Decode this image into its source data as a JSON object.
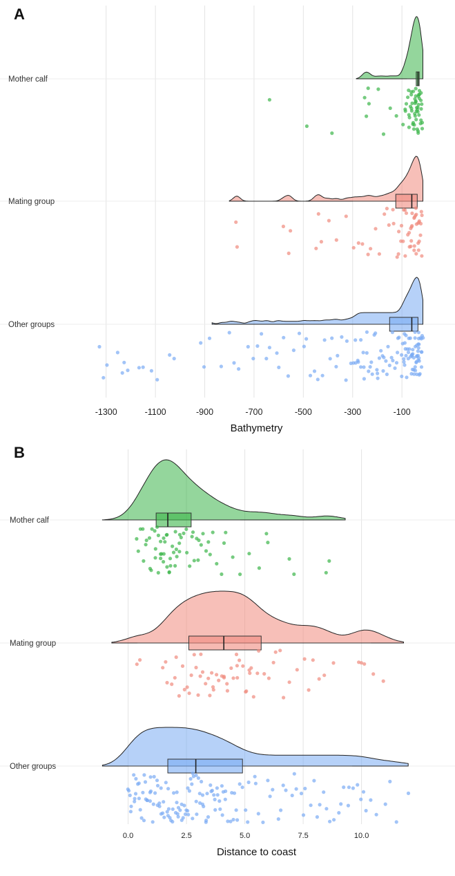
{
  "chart_data": [
    {
      "panel": "A",
      "type": "raincloud",
      "xlabel": "Bathymetry",
      "xlim": [
        -1400,
        20
      ],
      "xticks": [
        -1300,
        -1100,
        -900,
        -700,
        -500,
        -300,
        -100
      ],
      "xticklabels": [
        "-1300",
        "-1100",
        "-900",
        "-700",
        "-500",
        "-300",
        "-100"
      ],
      "grid": true,
      "groups": [
        {
          "label": "Mother calf",
          "color": "#3cb54a",
          "boxplot": {
            "q1": -42,
            "median": -35,
            "q3": -30,
            "whisker_low": -80,
            "whisker_high": -15
          },
          "density_range": [
            -285,
            -15
          ],
          "points": [
            -255,
            -248,
            -240,
            -230,
            -200,
            -175,
            -148,
            -125,
            -95,
            -90,
            -82,
            -75,
            -70,
            -66,
            -62,
            -58,
            -55,
            -52,
            -50,
            -48,
            -45,
            -43,
            -41,
            -39,
            -37,
            -35,
            -33,
            -31,
            -29,
            -27,
            -25,
            -23,
            -21,
            -19,
            -72,
            -60,
            -54,
            -47,
            -42,
            -36,
            -30,
            -26,
            -22,
            -88,
            -64,
            -56,
            -49,
            -44,
            -38,
            -34,
            -28,
            -24,
            -20,
            -78,
            -68,
            -57,
            -51,
            -46,
            -40,
            -32,
            -640,
            -490,
            -380
          ]
        },
        {
          "label": "Mating group",
          "color": "#f08a7e",
          "boxplot": {
            "q1": -125,
            "median": -60,
            "q3": -38,
            "whisker_low": -300,
            "whisker_high": -15
          },
          "density_range": [
            -800,
            -15
          ],
          "points": [
            -770,
            -770,
            -580,
            -560,
            -555,
            -450,
            -440,
            -430,
            -400,
            -365,
            -325,
            -300,
            -280,
            -260,
            -240,
            -230,
            -210,
            -190,
            -175,
            -160,
            -150,
            -140,
            -130,
            -120,
            -115,
            -110,
            -105,
            -100,
            -95,
            -90,
            -85,
            -80,
            -75,
            -70,
            -65,
            -62,
            -58,
            -55,
            -52,
            -48,
            -45,
            -42,
            -40,
            -38,
            -35,
            -32,
            -30,
            -28,
            -25,
            -22,
            -20,
            -18,
            -68,
            -50,
            -44,
            -36,
            -26,
            -88,
            -72,
            -60,
            -46,
            -34
          ]
        },
        {
          "label": "Other groups",
          "color": "#7aabf3",
          "boxplot": {
            "q1": -150,
            "median": -60,
            "q3": -35,
            "whisker_low": -500,
            "whisker_high": -15
          },
          "density_range": [
            -870,
            -15
          ],
          "points": [
            -1325,
            -1310,
            -1300,
            -1250,
            -1235,
            -1230,
            -1215,
            -1170,
            -1150,
            -1120,
            -1090,
            -1040,
            -1025,
            -920,
            -900,
            -880,
            -830,
            -800,
            -785,
            -760,
            -720,
            -700,
            -690,
            -670,
            -650,
            -640,
            -610,
            -600,
            -580,
            -560,
            -540,
            -520,
            -500,
            -490,
            -470,
            -455,
            -440,
            -420,
            -410,
            -395,
            -380,
            -370,
            -360,
            -345,
            -330,
            -320,
            -310,
            -300,
            -290,
            -280,
            -270,
            -260,
            -250,
            -240,
            -230,
            -220,
            -210,
            -200,
            -190,
            -180,
            -170,
            -160,
            -150,
            -140,
            -130,
            -120,
            -110,
            -100,
            -95,
            -90,
            -85,
            -80,
            -75,
            -70,
            -65,
            -60,
            -55,
            -50,
            -45,
            -40,
            -35,
            -30,
            -25,
            -20,
            -18,
            -62,
            -58,
            -52,
            -48,
            -42,
            -38,
            -33,
            -28,
            -24,
            -72,
            -66,
            -56,
            -46,
            -36,
            -26,
            -22,
            -88,
            -78,
            -68,
            -54,
            -44,
            -34,
            -31,
            -29,
            -27,
            -23,
            -21,
            -19,
            -105,
            -98,
            -92,
            -86,
            -82,
            -76,
            -64,
            -57,
            -51,
            -47,
            -41,
            -37,
            -32,
            -115,
            -125,
            -135,
            -145,
            -155,
            -165,
            -175,
            -185,
            -195,
            -205,
            -215,
            -225,
            -235,
            -245,
            -255,
            -265,
            -275,
            -285
          ]
        }
      ]
    },
    {
      "panel": "B",
      "type": "raincloud",
      "xlabel": "Distance to coast",
      "xlim": [
        -1.2,
        12.2
      ],
      "xticks": [
        0,
        2.5,
        5,
        7.5,
        10
      ],
      "xticklabels": [
        "0.0",
        "2.5",
        "5.0",
        "7.5",
        "10.0"
      ],
      "grid": true,
      "groups": [
        {
          "label": "Mother calf",
          "color": "#3cb54a",
          "boxplot": {
            "q1": 1.2,
            "median": 1.7,
            "q3": 2.7,
            "whisker_low": 0.0,
            "whisker_high": 4.8
          },
          "density_range": [
            -1.1,
            9.3
          ],
          "points": [
            0.4,
            0.5,
            0.6,
            0.7,
            0.8,
            0.9,
            1.0,
            1.1,
            1.15,
            1.2,
            1.25,
            1.3,
            1.35,
            1.4,
            1.45,
            1.5,
            1.55,
            1.6,
            1.65,
            1.7,
            1.75,
            1.8,
            1.85,
            1.9,
            1.95,
            2.0,
            2.05,
            2.1,
            2.15,
            2.2,
            2.3,
            2.4,
            2.5,
            2.6,
            2.7,
            2.8,
            2.9,
            3.0,
            3.1,
            3.2,
            3.3,
            3.4,
            3.6,
            3.8,
            4.0,
            4.2,
            4.5,
            4.8,
            5.2,
            5.6,
            5.9,
            6.0,
            6.9,
            7.1,
            8.5,
            8.6,
            0.45,
            0.75,
            0.95,
            1.05,
            1.22,
            1.38,
            1.52,
            1.68,
            1.82,
            2.02,
            2.25,
            2.45,
            2.75,
            3.05,
            3.5,
            4.1
          ]
        },
        {
          "label": "Mating group",
          "color": "#f08a7e",
          "boxplot": {
            "q1": 2.6,
            "median": 4.1,
            "q3": 5.7,
            "whisker_low": 0.4,
            "whisker_high": 10.4
          },
          "density_range": [
            -0.7,
            11.8
          ],
          "points": [
            0.4,
            0.5,
            1.5,
            1.6,
            1.7,
            1.9,
            2.0,
            2.1,
            2.2,
            2.4,
            2.5,
            2.6,
            2.7,
            2.8,
            2.9,
            3.0,
            3.1,
            3.2,
            3.3,
            3.4,
            3.5,
            3.6,
            3.7,
            3.8,
            3.9,
            4.0,
            4.1,
            4.2,
            4.3,
            4.4,
            4.5,
            4.6,
            4.7,
            4.8,
            4.9,
            5.0,
            5.1,
            5.2,
            5.3,
            5.4,
            5.5,
            5.6,
            5.8,
            6.0,
            6.2,
            6.3,
            6.5,
            6.7,
            6.9,
            7.2,
            7.6,
            7.7,
            7.9,
            8.2,
            8.4,
            8.8,
            9.9,
            10.0,
            10.1,
            10.5,
            10.9,
            2.35,
            3.15,
            3.65,
            4.15,
            4.65,
            5.15
          ]
        },
        {
          "label": "Other groups",
          "color": "#7aabf3",
          "boxplot": {
            "q1": 1.7,
            "median": 2.9,
            "q3": 4.9,
            "whisker_low": 0.0,
            "whisker_high": 9.6
          },
          "density_range": [
            -1.1,
            12.0
          ],
          "points": [
            0.0,
            0.05,
            0.1,
            0.15,
            0.2,
            0.3,
            0.4,
            0.5,
            0.6,
            0.7,
            0.8,
            0.9,
            1.0,
            1.1,
            1.2,
            1.3,
            1.4,
            1.5,
            1.6,
            1.7,
            1.8,
            1.9,
            2.0,
            2.1,
            2.2,
            2.3,
            2.4,
            2.5,
            2.6,
            2.7,
            2.8,
            2.9,
            3.0,
            3.1,
            3.2,
            3.3,
            3.4,
            3.5,
            3.6,
            3.7,
            3.8,
            3.9,
            4.0,
            4.1,
            4.2,
            4.3,
            4.4,
            4.5,
            4.6,
            4.7,
            4.8,
            4.9,
            5.0,
            5.2,
            5.4,
            5.6,
            5.8,
            6.0,
            6.2,
            6.4,
            6.6,
            6.8,
            7.0,
            7.2,
            7.4,
            7.6,
            7.8,
            8.0,
            8.2,
            8.4,
            8.6,
            8.8,
            9.0,
            9.2,
            9.4,
            9.6,
            9.8,
            10.0,
            10.2,
            10.4,
            10.6,
            11.0,
            11.2,
            11.5,
            12.0,
            0.35,
            0.55,
            0.75,
            0.95,
            1.15,
            1.35,
            1.55,
            1.75,
            1.95,
            2.15,
            2.35,
            2.55,
            2.75,
            2.95,
            3.15,
            3.35,
            3.55,
            3.75,
            3.95,
            4.15,
            4.35,
            0.25,
            0.45,
            0.65,
            0.85,
            1.05,
            1.25,
            1.45,
            1.65,
            1.85,
            2.05,
            2.25,
            2.45,
            2.65,
            2.85,
            3.05,
            3.25,
            3.45,
            3.65,
            3.85,
            4.05,
            4.55,
            5.1,
            5.5,
            6.1,
            6.5,
            7.1,
            7.5,
            8.1,
            8.5,
            9.1,
            9.5,
            10.1,
            0.12,
            0.32,
            0.52,
            0.72,
            0.92,
            1.12,
            1.32,
            1.52,
            1.72,
            1.92,
            2.12,
            2.32,
            2.52,
            2.72,
            2.92,
            3.12
          ]
        }
      ]
    }
  ]
}
